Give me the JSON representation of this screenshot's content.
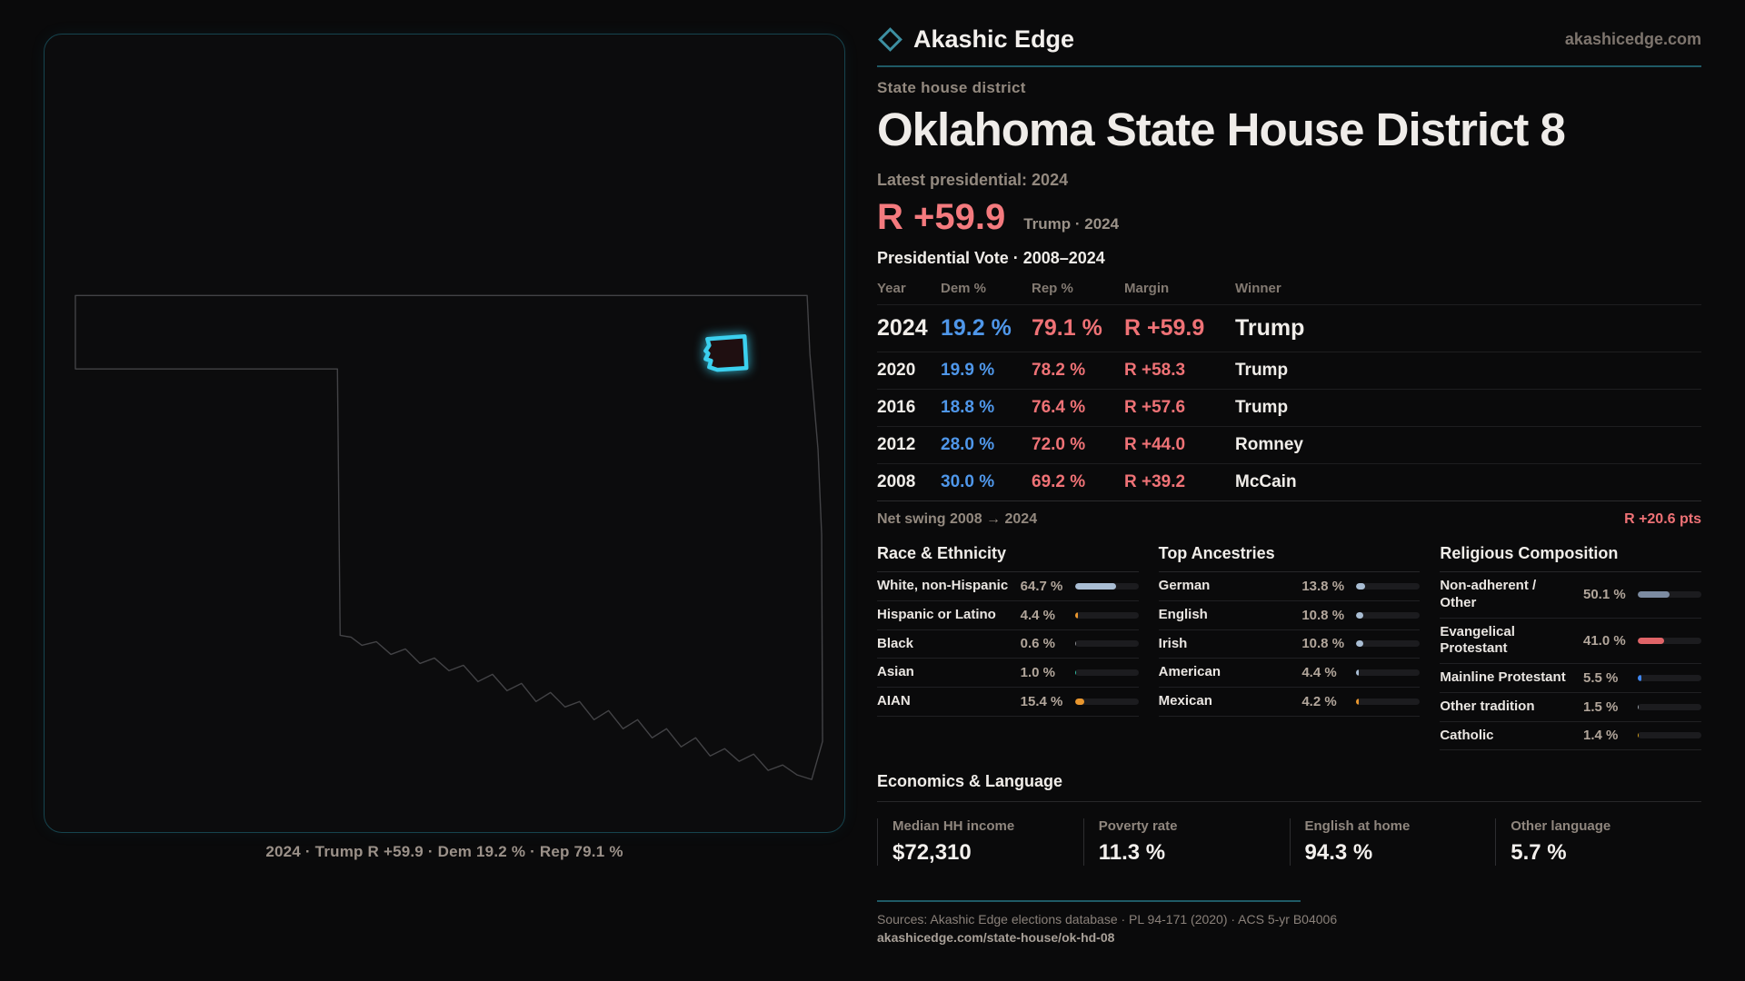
{
  "brand": {
    "name": "Akashic Edge",
    "site": "akashicedge.com"
  },
  "eyebrow": "State house district",
  "title": "Oklahoma State House District 8",
  "latest_label": "Latest presidential: 2024",
  "headline": {
    "margin": "R +59.9",
    "note": "Trump · 2024"
  },
  "table": {
    "title": "Presidential Vote · 2008–2024",
    "headers": [
      "Year",
      "Dem %",
      "Rep %",
      "Margin",
      "Winner"
    ],
    "rows": [
      {
        "year": "2024",
        "dem": "19.2 %",
        "rep": "79.1 %",
        "margin": "R +59.9",
        "winner": "Trump"
      },
      {
        "year": "2020",
        "dem": "19.9 %",
        "rep": "78.2 %",
        "margin": "R +58.3",
        "winner": "Trump"
      },
      {
        "year": "2016",
        "dem": "18.8 %",
        "rep": "76.4 %",
        "margin": "R +57.6",
        "winner": "Trump"
      },
      {
        "year": "2012",
        "dem": "28.0 %",
        "rep": "72.0 %",
        "margin": "R +44.0",
        "winner": "Romney"
      },
      {
        "year": "2008",
        "dem": "30.0 %",
        "rep": "69.2 %",
        "margin": "R +39.2",
        "winner": "McCain"
      }
    ]
  },
  "net_swing": {
    "label": "Net swing 2008 → 2024",
    "value": "R +20.6 pts"
  },
  "demographics": {
    "race": {
      "title": "Race & Ethnicity",
      "rows": [
        {
          "label": "White, non-Hispanic",
          "value": "64.7 %",
          "pct": 64.7,
          "color": "#a9bdd3"
        },
        {
          "label": "Hispanic or Latino",
          "value": "4.4 %",
          "pct": 4.4,
          "color": "#e8962e"
        },
        {
          "label": "Black",
          "value": "0.6 %",
          "pct": 0.6,
          "color": "#8f8f93"
        },
        {
          "label": "Asian",
          "value": "1.0 %",
          "pct": 1.0,
          "color": "#2fbfa3"
        },
        {
          "label": "AIAN",
          "value": "15.4 %",
          "pct": 15.4,
          "color": "#e8962e"
        }
      ]
    },
    "ancestries": {
      "title": "Top Ancestries",
      "rows": [
        {
          "label": "German",
          "value": "13.8 %",
          "pct": 13.8,
          "color": "#a9bdd3"
        },
        {
          "label": "English",
          "value": "10.8 %",
          "pct": 10.8,
          "color": "#a9bdd3"
        },
        {
          "label": "Irish",
          "value": "10.8 %",
          "pct": 10.8,
          "color": "#a9bdd3"
        },
        {
          "label": "American",
          "value": "4.4 %",
          "pct": 4.4,
          "color": "#a9bdd3"
        },
        {
          "label": "Mexican",
          "value": "4.2 %",
          "pct": 4.2,
          "color": "#e8962e"
        }
      ]
    },
    "religion": {
      "title": "Religious Composition",
      "rows": [
        {
          "label": "Non-adherent / Other",
          "value": "50.1 %",
          "pct": 50.1,
          "color": "#7c8ba1"
        },
        {
          "label": "Evangelical Protestant",
          "value": "41.0 %",
          "pct": 41.0,
          "color": "#e06468"
        },
        {
          "label": "Mainline Protestant",
          "value": "5.5 %",
          "pct": 5.5,
          "color": "#3f86ef"
        },
        {
          "label": "Other tradition",
          "value": "1.5 %",
          "pct": 1.5,
          "color": "#9aa0a6"
        },
        {
          "label": "Catholic",
          "value": "1.4 %",
          "pct": 1.4,
          "color": "#d4a017"
        }
      ]
    }
  },
  "economics": {
    "title": "Economics & Language",
    "stats": [
      {
        "label": "Median HH income",
        "value": "$72,310"
      },
      {
        "label": "Poverty rate",
        "value": "11.3 %"
      },
      {
        "label": "English at home",
        "value": "94.3 %"
      },
      {
        "label": "Other language",
        "value": "5.7 %"
      }
    ]
  },
  "footer": {
    "sources": "Sources: Akashic Edge elections database · PL 94-171 (2020) · ACS 5-yr B04006",
    "permalink": "akashicedge.com/state-house/ok-hd-08"
  },
  "map": {
    "caption": "2024 · Trump R +59.9 · Dem 19.2 % · Rep 79.1 %",
    "district_color": "#3bd0ef"
  }
}
